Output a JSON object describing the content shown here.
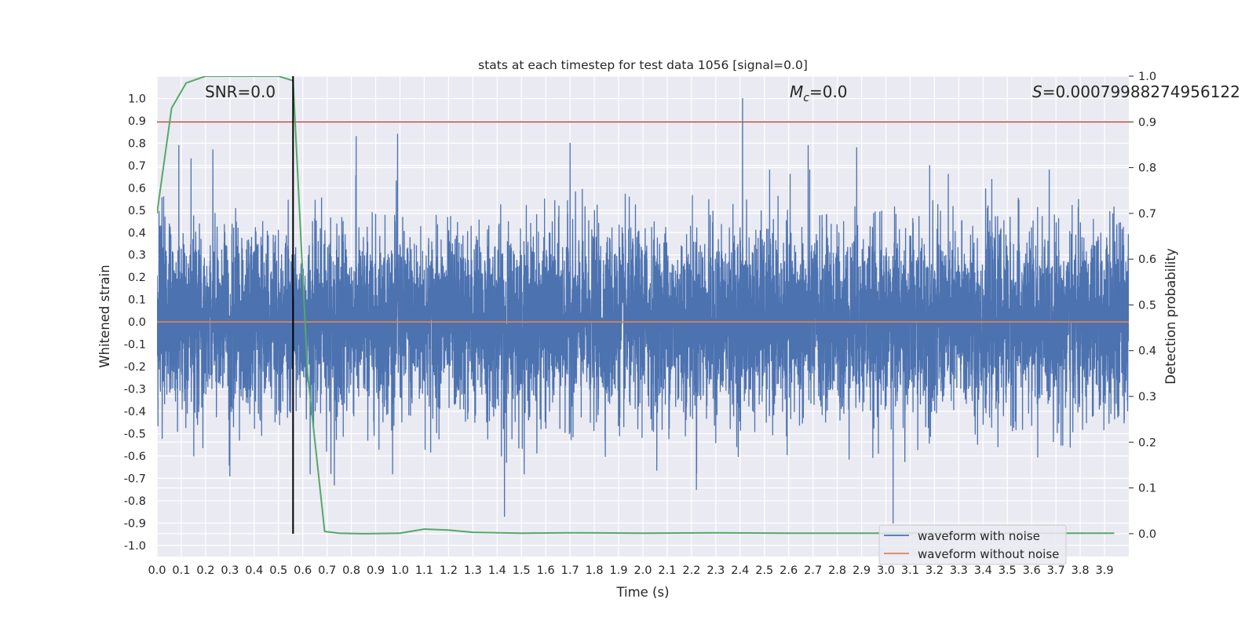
{
  "chart_data": {
    "type": "line",
    "title": "stats at each timestep for test data 1056 [signal=0.0]",
    "xlabel": "Time (s)",
    "ylabel": "Whitened strain",
    "y2label": "Detection probability",
    "xlim": [
      0.0,
      4.0
    ],
    "ylim": [
      -1.05,
      1.1
    ],
    "y2lim": [
      -0.05,
      1.0
    ],
    "x_ticks": [
      "0.0",
      "0.1",
      "0.2",
      "0.3",
      "0.4",
      "0.5",
      "0.6",
      "0.7",
      "0.8",
      "0.9",
      "1.0",
      "1.1",
      "1.2",
      "1.3",
      "1.4",
      "1.5",
      "1.6",
      "1.7",
      "1.8",
      "1.9",
      "2.0",
      "2.1",
      "2.2",
      "2.3",
      "2.4",
      "2.5",
      "2.6",
      "2.7",
      "2.8",
      "2.9",
      "3.0",
      "3.1",
      "3.2",
      "3.3",
      "3.4",
      "3.5",
      "3.6",
      "3.7",
      "3.8",
      "3.9"
    ],
    "y_ticks": [
      "1.0",
      "0.9",
      "0.8",
      "0.7",
      "0.6",
      "0.5",
      "0.4",
      "0.3",
      "0.2",
      "0.1",
      "0.0",
      "-0.1",
      "-0.2",
      "-0.3",
      "-0.4",
      "-0.5",
      "-0.6",
      "-0.7",
      "-0.8",
      "-0.9",
      "-1.0"
    ],
    "y2_ticks": [
      "1.0",
      "0.9",
      "0.8",
      "0.7",
      "0.6",
      "0.5",
      "0.4",
      "0.3",
      "0.2",
      "0.1",
      "0.0"
    ],
    "grid": true,
    "legend_position": "bottom-right",
    "annotations": {
      "snr": "SNR=0.0",
      "mc": "=0.0",
      "mc_symbol": "M",
      "mc_sub": "c",
      "s": "=0.00079988274956122",
      "s_symbol": "S"
    },
    "threshold_probability": 0.9,
    "marker_time": 0.56,
    "series": [
      {
        "name": "waveform with noise",
        "color": "#4c72b0",
        "kind": "noise",
        "sample_rate": 2048,
        "amplitude_sigma": 0.2,
        "peaks": [
          {
            "x": 0.09,
            "y": 0.79
          },
          {
            "x": 0.14,
            "y": 0.73
          },
          {
            "x": 0.23,
            "y": 0.77
          },
          {
            "x": 0.3,
            "y": -0.69
          },
          {
            "x": 0.73,
            "y": -0.73
          },
          {
            "x": 0.82,
            "y": 0.83
          },
          {
            "x": 0.99,
            "y": 0.84
          },
          {
            "x": 1.43,
            "y": -0.87
          },
          {
            "x": 1.7,
            "y": 0.8
          },
          {
            "x": 2.22,
            "y": -0.75
          },
          {
            "x": 2.41,
            "y": 1.0
          },
          {
            "x": 2.68,
            "y": 0.79
          },
          {
            "x": 2.88,
            "y": 0.78
          },
          {
            "x": 3.03,
            "y": -0.9
          },
          {
            "x": 3.18,
            "y": 0.7
          }
        ]
      },
      {
        "name": "waveform without noise",
        "color": "#dd8452",
        "x": [
          0.0,
          4.0
        ],
        "y": [
          0.0,
          0.0
        ]
      },
      {
        "name": "detection probability",
        "color": "#55a868",
        "axis": "right",
        "x": [
          0.0,
          0.06,
          0.12,
          0.2,
          0.3,
          0.4,
          0.5,
          0.56,
          0.62,
          0.69,
          0.75,
          0.85,
          1.0,
          1.1,
          1.2,
          1.3,
          1.5,
          1.7,
          2.0,
          2.3,
          2.6,
          3.0,
          3.5,
          3.94
        ],
        "y": [
          0.7,
          0.93,
          0.985,
          1.0,
          1.0,
          1.0,
          1.0,
          0.99,
          0.35,
          0.005,
          0.001,
          0.0,
          0.001,
          0.01,
          0.008,
          0.003,
          0.001,
          0.002,
          0.001,
          0.002,
          0.001,
          0.001,
          0.001,
          0.001
        ]
      }
    ],
    "colors": {
      "background": "#eaeaf2",
      "grid": "#ffffff",
      "threshold": "#c44e52",
      "marker": "#000000",
      "axis_text": "#262626"
    }
  }
}
